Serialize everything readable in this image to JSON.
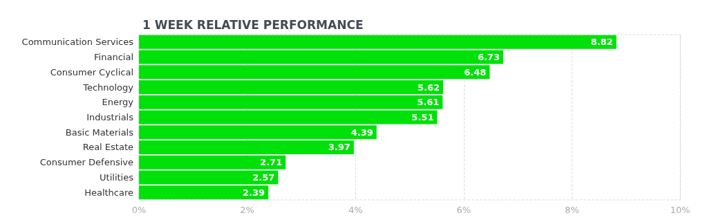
{
  "chart_data": {
    "type": "bar",
    "orientation": "horizontal",
    "title": "1 WEEK RELATIVE PERFORMANCE",
    "categories": [
      "Communication Services",
      "Financial",
      "Consumer Cyclical",
      "Technology",
      "Energy",
      "Industrials",
      "Basic Materials",
      "Real Estate",
      "Consumer Defensive",
      "Utilities",
      "Healthcare"
    ],
    "values": [
      8.82,
      6.73,
      6.48,
      5.62,
      5.61,
      5.51,
      4.39,
      3.97,
      2.71,
      2.57,
      2.39
    ],
    "color": "#00e10a",
    "xlim": [
      0,
      10
    ],
    "xticks": [
      {
        "value": 0,
        "label": "0%"
      },
      {
        "value": 2,
        "label": "2%"
      },
      {
        "value": 4,
        "label": "4%"
      },
      {
        "value": 6,
        "label": "6%"
      },
      {
        "value": 8,
        "label": "8%"
      },
      {
        "value": 10,
        "label": "10%"
      }
    ],
    "grid": "x",
    "data_labels": true
  }
}
